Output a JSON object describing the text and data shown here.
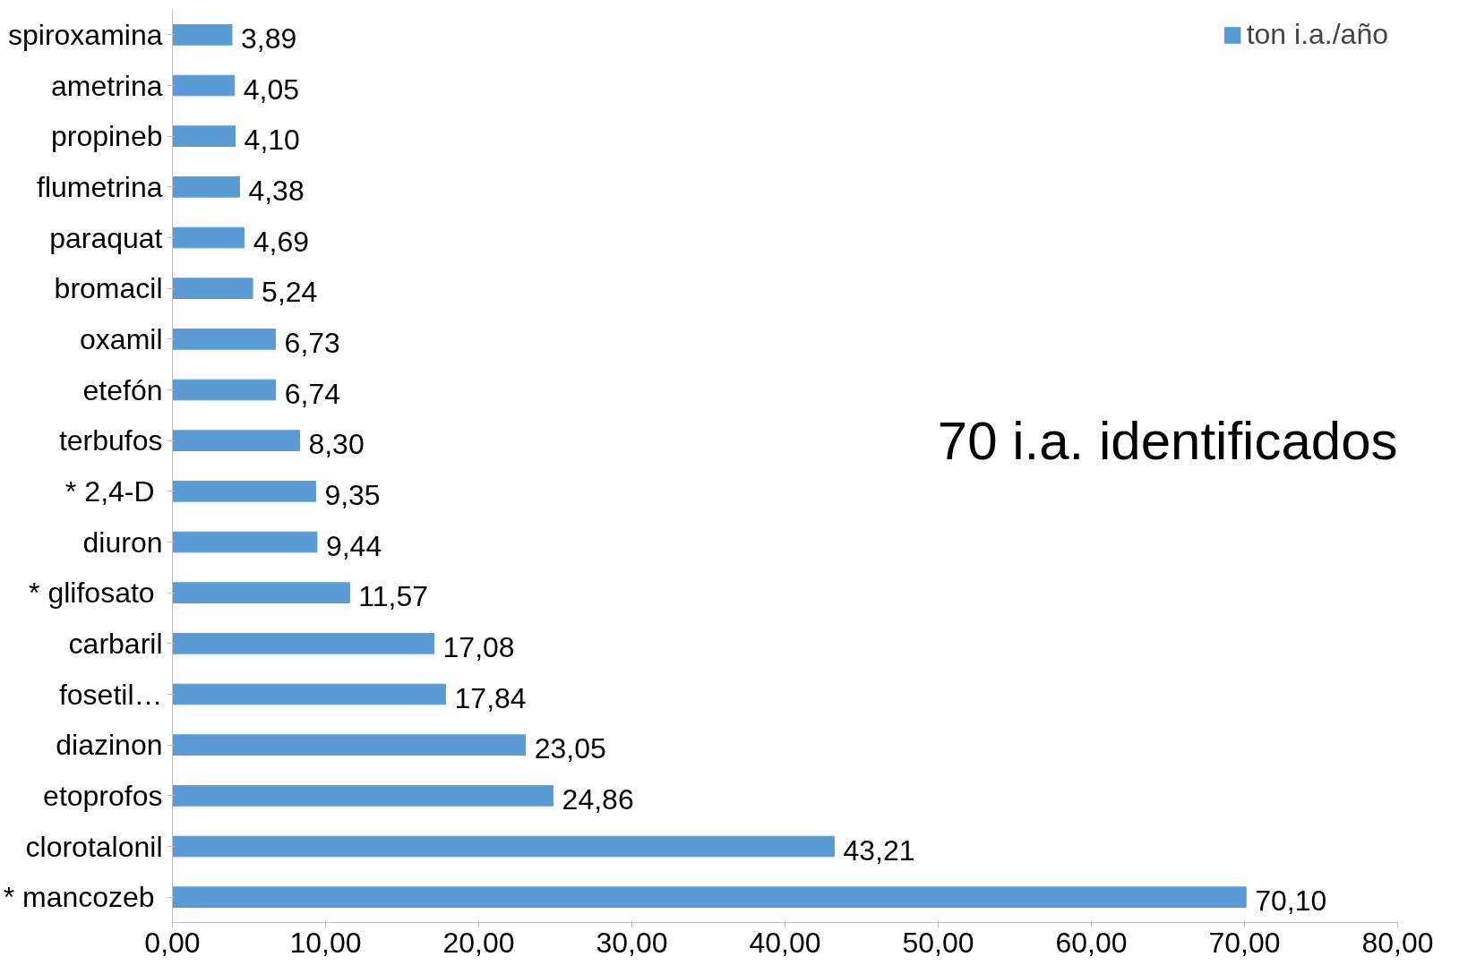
{
  "chart_data": {
    "type": "bar",
    "orientation": "horizontal",
    "categories": [
      "spiroxamina",
      "ametrina",
      "propineb",
      "flumetrina",
      "paraquat",
      "bromacil",
      "oxamil",
      "etefón",
      "terbufos",
      "*  2,4-D",
      "diuron",
      "*  glifosato",
      "carbaril",
      "fosetil…",
      "diazinon",
      "etoprofos",
      "clorotalonil",
      "*  mancozeb"
    ],
    "series": [
      {
        "name": "ton i.a./año",
        "color": "#5b9bd5",
        "values": [
          3.89,
          4.05,
          4.1,
          4.38,
          4.69,
          5.24,
          6.73,
          6.74,
          8.3,
          9.35,
          9.44,
          11.57,
          17.08,
          17.84,
          23.05,
          24.86,
          43.21,
          70.1
        ],
        "value_labels": [
          "3,89",
          "4,05",
          "4,10",
          "4,38",
          "4,69",
          "5,24",
          "6,73",
          "6,74",
          "8,30",
          "9,35",
          "9,44",
          "11,57",
          "17,08",
          "17,84",
          "23,05",
          "24,86",
          "43,21",
          "70,10"
        ]
      }
    ],
    "xlim": [
      0,
      80
    ],
    "xticks": [
      {
        "value": 0,
        "label": "0,00"
      },
      {
        "value": 10,
        "label": "10,00"
      },
      {
        "value": 20,
        "label": "20,00"
      },
      {
        "value": 30,
        "label": "30,00"
      },
      {
        "value": 40,
        "label": "40,00"
      },
      {
        "value": 50,
        "label": "50,00"
      },
      {
        "value": 60,
        "label": "60,00"
      },
      {
        "value": 70,
        "label": "70,00"
      },
      {
        "value": 80,
        "label": "80,00"
      }
    ],
    "annotations": [
      "70 i.a. identificados"
    ],
    "legend": "top right",
    "grid": false
  }
}
